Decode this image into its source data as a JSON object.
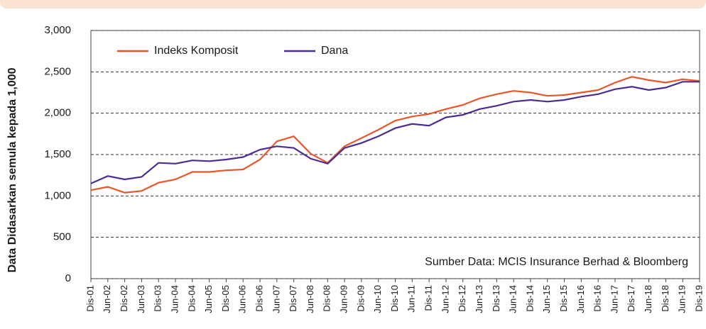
{
  "chart_data": {
    "type": "line",
    "y_label": "Data Didasarkan semula kepada 1,000",
    "annotation": "Sumber Data: MCIS Insurance Berhad & Bloomberg",
    "categories": [
      "Dis-01",
      "Jun-02",
      "Dis-02",
      "Jun-03",
      "Dis-03",
      "Jun-04",
      "Dis-04",
      "Jun-05",
      "Dis-05",
      "Jun-06",
      "Dis-06",
      "Jun-07",
      "Dis-07",
      "Jun-08",
      "Dis-08",
      "Jun-09",
      "Dis-09",
      "Jun-10",
      "Dis-10",
      "Jun-11",
      "Dis-11",
      "Jun-12",
      "Dis-12",
      "Jun-13",
      "Dis-13",
      "Jun-14",
      "Dis-14",
      "Jun-15",
      "Dis-15",
      "Jun-16",
      "Dis-16",
      "Jun-17",
      "Dis-17",
      "Jun-18",
      "Dis-18",
      "Jun-19",
      "Dis-19"
    ],
    "series": [
      {
        "name": "Indeks Komposit",
        "color": "#e8562a",
        "values": [
          1070,
          1110,
          1040,
          1060,
          1160,
          1200,
          1290,
          1290,
          1310,
          1320,
          1440,
          1660,
          1720,
          1510,
          1400,
          1600,
          1700,
          1800,
          1910,
          1960,
          1990,
          2050,
          2100,
          2180,
          2230,
          2270,
          2250,
          2210,
          2220,
          2250,
          2280,
          2370,
          2440,
          2400,
          2370,
          2410,
          2390
        ]
      },
      {
        "name": "Dana",
        "color": "#4b2c8f",
        "values": [
          1150,
          1240,
          1200,
          1230,
          1400,
          1390,
          1430,
          1420,
          1440,
          1470,
          1560,
          1600,
          1580,
          1450,
          1390,
          1580,
          1640,
          1720,
          1820,
          1870,
          1850,
          1950,
          1980,
          2050,
          2090,
          2140,
          2160,
          2140,
          2160,
          2200,
          2230,
          2290,
          2320,
          2280,
          2310,
          2380,
          2380
        ]
      }
    ],
    "ylim": [
      0,
      3000
    ],
    "yticks": [
      0,
      500,
      {
        "value": 1000,
        "label": "1,000"
      },
      {
        "value": 1500,
        "label": "1,500"
      },
      {
        "value": 2000,
        "label": "2,000"
      },
      {
        "value": 2500,
        "label": "2,500"
      },
      {
        "value": 3000,
        "label": "3,000"
      }
    ],
    "grid": true,
    "legend": "top-left"
  }
}
